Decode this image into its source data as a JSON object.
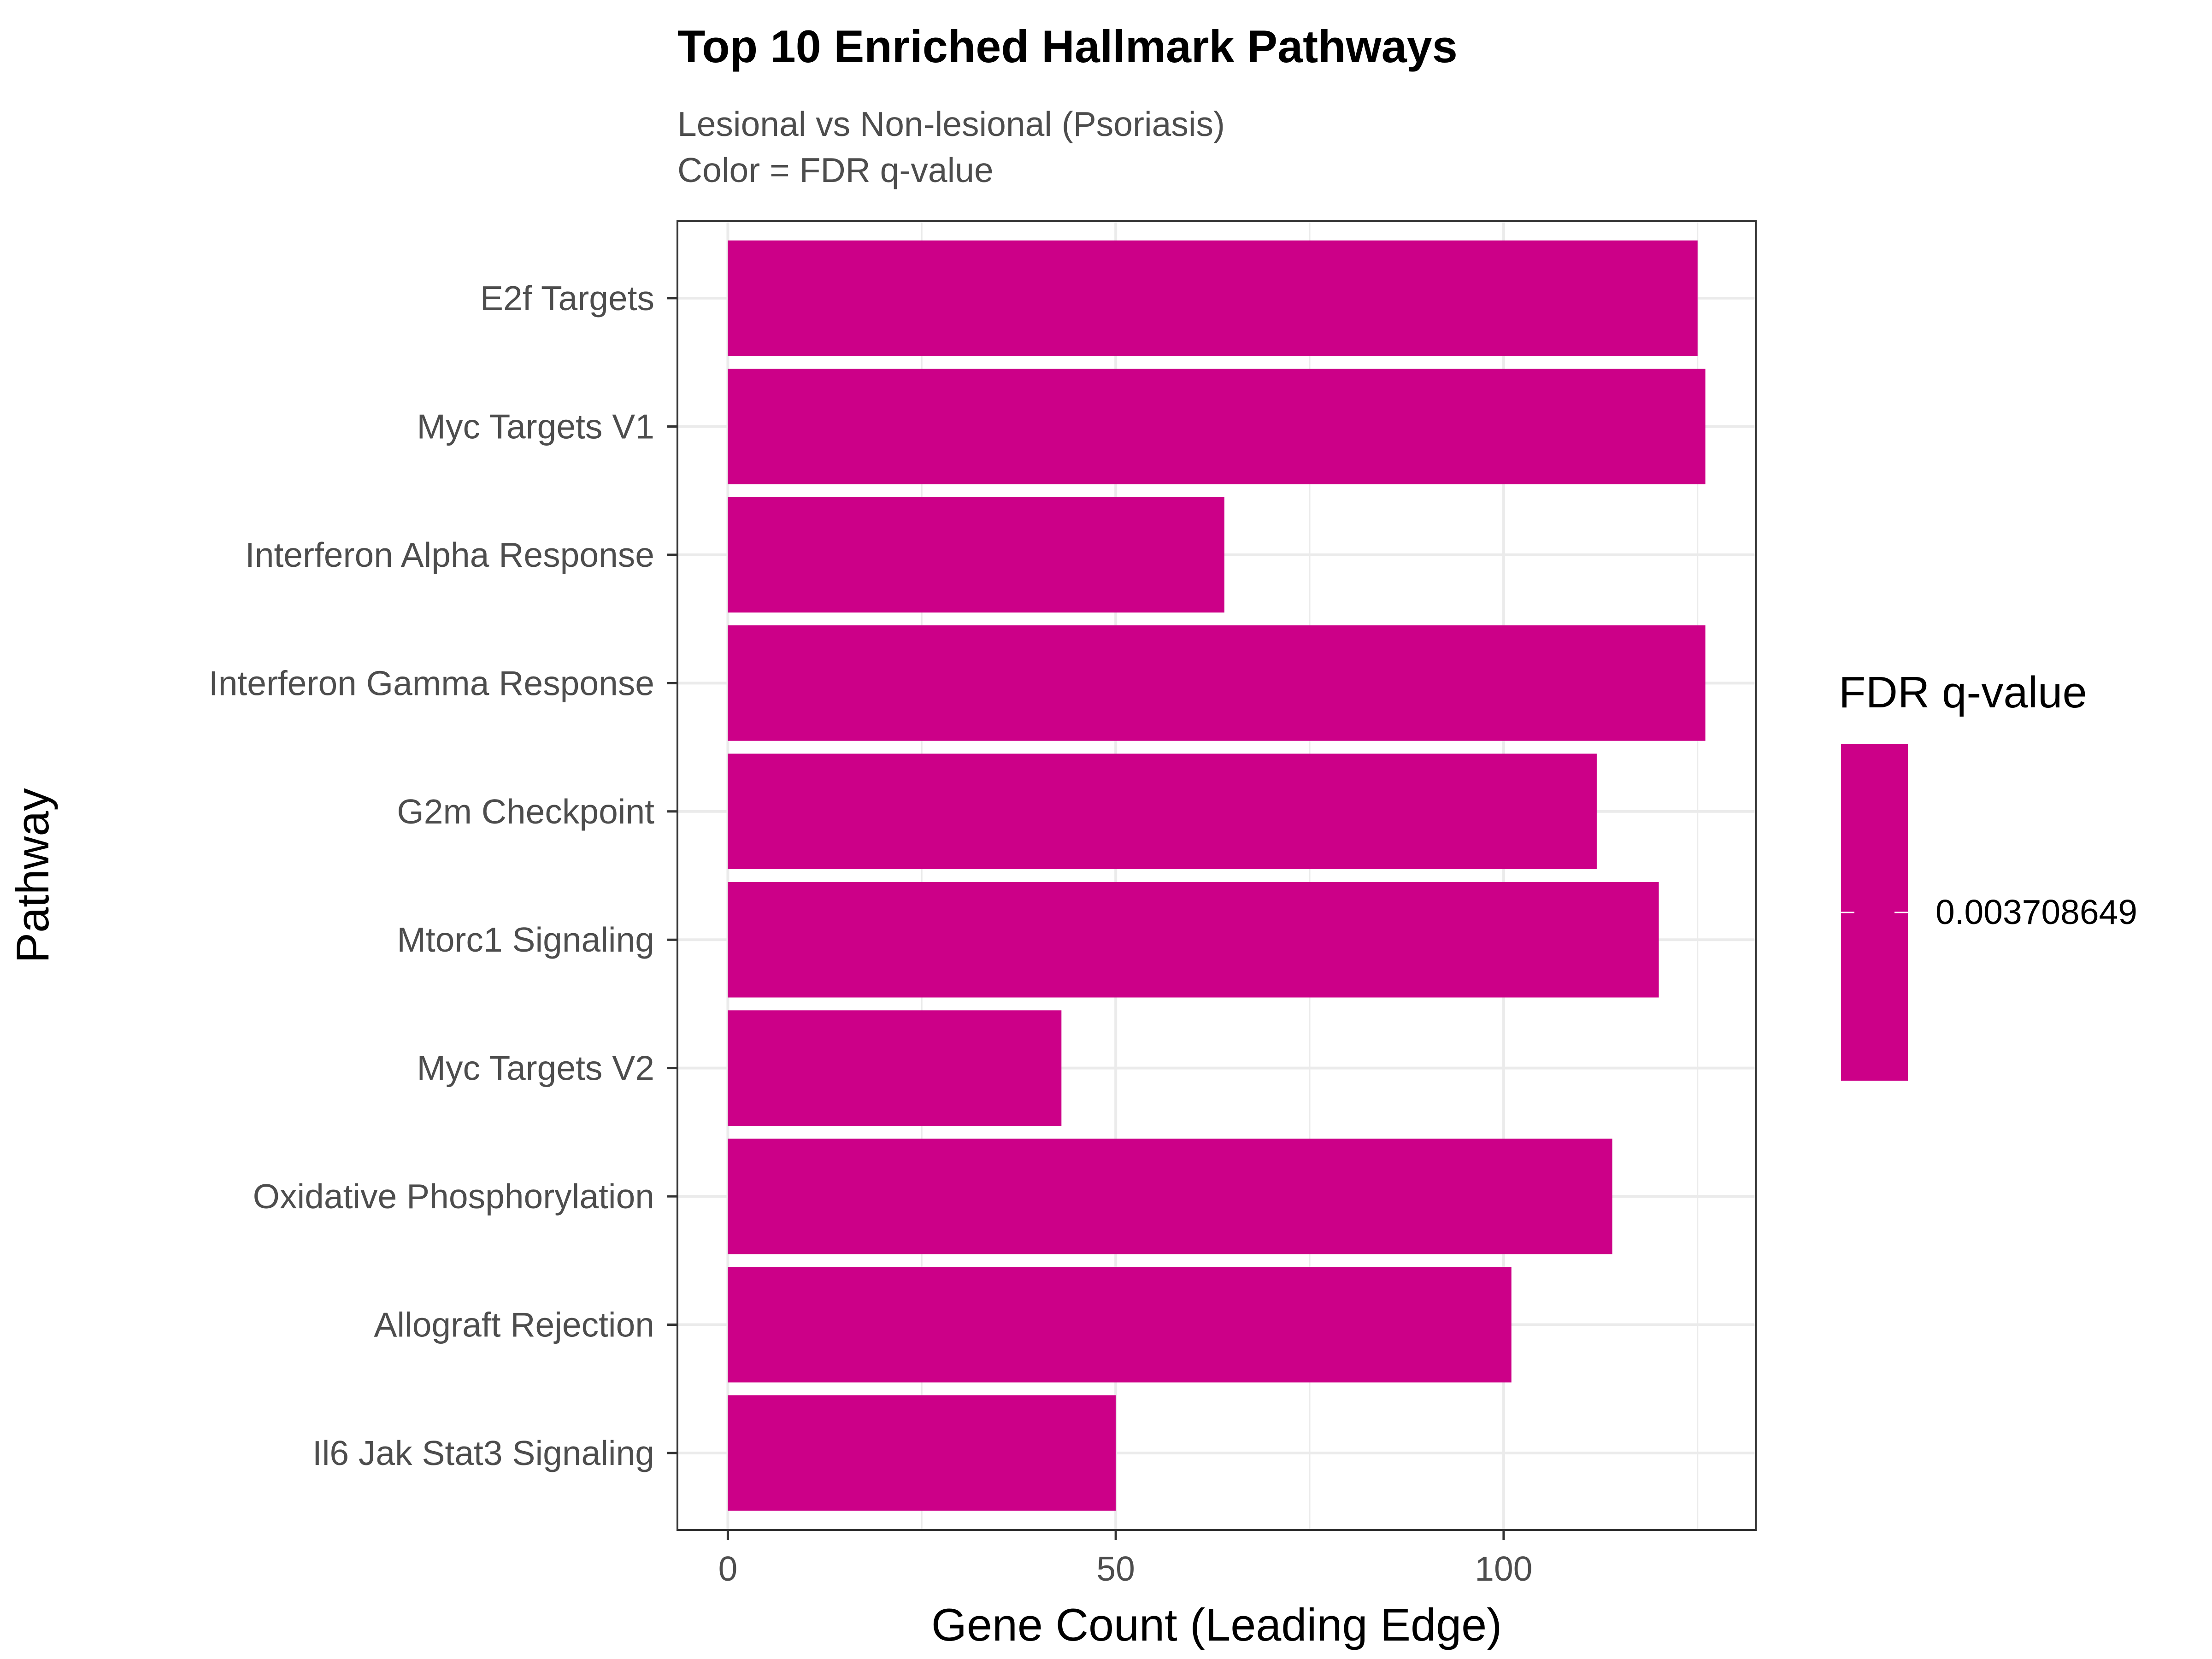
{
  "chart_data": {
    "type": "bar",
    "orientation": "horizontal",
    "title": "Top 10 Enriched Hallmark Pathways",
    "subtitle_lines": [
      "Lesional vs Non-lesional (Psoriasis)",
      "Color = FDR q-value"
    ],
    "xlabel": "Gene Count (Leading Edge)",
    "ylabel": "Pathway",
    "xlim": [
      -6.5,
      132.5
    ],
    "x_ticks": [
      0,
      50,
      100
    ],
    "grid": true,
    "categories": [
      "E2f Targets",
      "Myc Targets V1",
      "Interferon Alpha Response",
      "Interferon Gamma Response",
      "G2m Checkpoint",
      "Mtorc1 Signaling",
      "Myc Targets V2",
      "Oxidative Phosphorylation",
      "Allograft Rejection",
      "Il6 Jak Stat3 Signaling"
    ],
    "values": [
      125,
      126,
      64,
      126,
      112,
      120,
      43,
      114,
      101,
      50
    ],
    "bar_color": "#cc0088",
    "legend": {
      "title": "FDR q-value",
      "label": "0.003708649",
      "color": "#cc0088",
      "placement": "right"
    }
  }
}
